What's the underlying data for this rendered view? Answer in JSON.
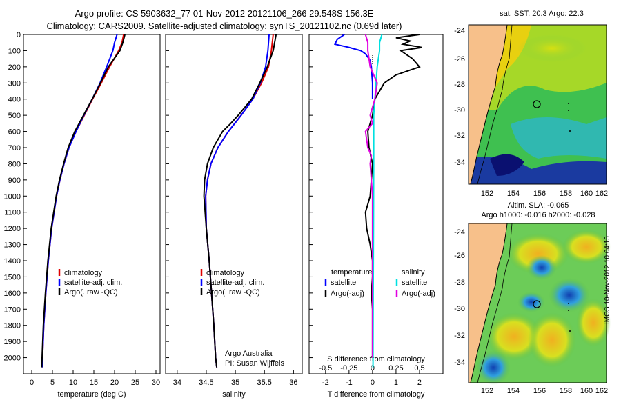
{
  "header": {
    "line1": "Argo profile: CS 5903632_77 01-Nov-2012 20121106_266 29.548S 156.3E",
    "line2": "Climatology: CARS2009. Satellite-adjusted climatology: synTS_20121102.nc (0.69d later)"
  },
  "colors": {
    "climatology": "#e00000",
    "satellite": "#0000ff",
    "argo": "#000000",
    "sal_satellite": "#00e0e0",
    "sal_argo": "#e000e0"
  },
  "chart_data": [
    {
      "type": "line",
      "name": "temperature",
      "xlabel": "temperature (deg C)",
      "ylabel": "",
      "xlim": [
        -2,
        31
      ],
      "ylim": [
        2100,
        0
      ],
      "xticks": [
        0,
        5,
        10,
        15,
        20,
        25,
        30
      ],
      "yticks": [
        0,
        100,
        200,
        300,
        400,
        500,
        600,
        700,
        800,
        900,
        1000,
        1100,
        1200,
        1300,
        1400,
        1500,
        1600,
        1700,
        1800,
        1900,
        2000
      ],
      "series": [
        {
          "name": "climatology",
          "depth": [
            0,
            50,
            100,
            200,
            300,
            400,
            500,
            600,
            700,
            800,
            900,
            1000,
            1200,
            1400,
            1600,
            1800,
            2000,
            2060
          ],
          "values": [
            22.2,
            21.8,
            21.0,
            18.8,
            16.8,
            14.7,
            12.7,
            10.7,
            9.0,
            7.8,
            6.8,
            6.0,
            4.8,
            4.0,
            3.4,
            2.9,
            2.6,
            2.5
          ]
        },
        {
          "name": "satellite-adj. clim.",
          "depth": [
            0,
            50,
            100,
            200,
            300,
            400,
            500,
            600,
            700,
            800,
            900,
            1000,
            1200,
            1400,
            1600,
            1800,
            2000,
            2060
          ],
          "values": [
            20.6,
            20.0,
            19.6,
            18.1,
            16.5,
            14.6,
            12.6,
            10.7,
            9.0,
            7.8,
            6.8,
            6.0,
            4.8,
            4.0,
            3.4,
            2.9,
            2.6,
            2.5
          ]
        },
        {
          "name": "Argo(..raw -QC)",
          "depth": [
            0,
            50,
            100,
            200,
            300,
            400,
            500,
            600,
            700,
            800,
            900,
            1000,
            1200,
            1400,
            1600,
            1800,
            2000,
            2060
          ],
          "values": [
            22.5,
            22.0,
            21.3,
            18.5,
            16.6,
            14.6,
            12.5,
            10.4,
            8.8,
            7.7,
            6.7,
            5.9,
            4.7,
            3.9,
            3.3,
            2.8,
            2.5,
            2.4
          ]
        }
      ],
      "legend": [
        "climatology",
        "satellite-adj. clim.",
        "Argo(..raw -QC)"
      ]
    },
    {
      "type": "line",
      "name": "salinity",
      "xlabel": "salinity",
      "ylabel": "",
      "xlim": [
        33.8,
        36.15
      ],
      "ylim": [
        2100,
        0
      ],
      "xticks": [
        34,
        34.5,
        35,
        35.5,
        36
      ],
      "series": [
        {
          "name": "climatology",
          "depth": [
            0,
            100,
            200,
            300,
            400,
            500,
            600,
            700,
            800,
            900,
            1000,
            1200,
            1400,
            1600,
            1800,
            2000,
            2060
          ],
          "values": [
            35.65,
            35.62,
            35.57,
            35.45,
            35.3,
            35.1,
            34.88,
            34.7,
            34.58,
            34.52,
            34.49,
            34.5,
            34.55,
            34.59,
            34.63,
            34.66,
            34.68
          ]
        },
        {
          "name": "satellite-adj. clim.",
          "depth": [
            0,
            100,
            200,
            300,
            400,
            500,
            600,
            700,
            800,
            900,
            1000,
            1200,
            1400,
            1600,
            1800,
            2000,
            2060
          ],
          "values": [
            35.58,
            35.56,
            35.52,
            35.43,
            35.3,
            35.1,
            34.88,
            34.7,
            34.58,
            34.52,
            34.49,
            34.5,
            34.55,
            34.59,
            34.63,
            34.66,
            34.68
          ]
        },
        {
          "name": "Argo(..raw -QC)",
          "depth": [
            0,
            100,
            200,
            300,
            400,
            500,
            550,
            600,
            700,
            800,
            900,
            1000,
            1200,
            1400,
            1600,
            1800,
            2000,
            2060
          ],
          "values": [
            35.7,
            35.65,
            35.55,
            35.42,
            35.28,
            35.05,
            34.92,
            34.78,
            34.62,
            34.52,
            34.47,
            34.46,
            34.5,
            34.55,
            34.59,
            34.63,
            34.66,
            34.68
          ]
        }
      ],
      "legend": [
        "climatology",
        "satellite-adj. clim.",
        "Argo(..raw -QC)"
      ],
      "annotation": [
        "Argo Australia",
        "PI: Susan Wijffels"
      ]
    },
    {
      "type": "line",
      "name": "differences",
      "xlabel": "T difference from climatology",
      "xlabel2": "S difference from climatology",
      "xlim": [
        -2.7,
        3.0
      ],
      "ylim": [
        2100,
        0
      ],
      "xticks": [
        -2,
        -1,
        0,
        1,
        2
      ],
      "xticks2_values": [
        -2,
        -1,
        0,
        1,
        2
      ],
      "xticks2_labels": [
        "-0.5",
        "-0.25",
        "0",
        "0.25",
        "0.5"
      ],
      "series": [
        {
          "name": "temperature satellite",
          "depth": [
            0,
            30,
            60,
            80,
            100,
            120,
            140,
            160,
            200,
            300,
            400
          ],
          "values": [
            -1.2,
            -1.5,
            -1.6,
            -1.0,
            -0.5,
            -0.3,
            -0.2,
            -0.1,
            -0.05,
            0,
            0
          ]
        },
        {
          "name": "temperature Argo(-adj)",
          "depth": [
            0,
            20,
            40,
            60,
            80,
            100,
            150,
            200,
            250,
            300,
            400,
            500,
            600,
            700,
            800,
            900,
            1000,
            1100,
            1200,
            1300,
            1400,
            1500,
            1600,
            1700,
            1800,
            1900,
            2000
          ],
          "values": [
            2.0,
            1.0,
            1.6,
            1.3,
            2.1,
            1.2,
            1.7,
            2.0,
            1.0,
            0.5,
            0.1,
            0,
            -0.2,
            -0.15,
            0,
            -0.05,
            -0.1,
            -0.3,
            -0.25,
            -0.1,
            0,
            0,
            -0.05,
            0,
            0,
            0,
            0
          ]
        },
        {
          "name": "salinity satellite",
          "depth": [
            0,
            50,
            100,
            200,
            300,
            400,
            500,
            800,
            1200,
            1600,
            2060
          ],
          "values": [
            0.4,
            0.3,
            0.3,
            0.2,
            0.15,
            0.1,
            0.05,
            0.05,
            0.04,
            0.03,
            0.02
          ]
        },
        {
          "name": "salinity Argo(-adj)",
          "depth": [
            0,
            50,
            100,
            200,
            300,
            400,
            500,
            550,
            600,
            700,
            750,
            800,
            900,
            1000,
            1100,
            1200,
            1400,
            1600,
            1800,
            2000
          ],
          "values": [
            -0.3,
            -0.2,
            -0.2,
            -0.1,
            0.2,
            0.1,
            -0.1,
            0,
            -0.3,
            -0.2,
            -0.05,
            -0.1,
            -0.05,
            0,
            0,
            0,
            0,
            0,
            0,
            0
          ]
        }
      ],
      "legend_headers": [
        "temperature",
        "salinity"
      ],
      "legend": [
        "satellite",
        "Argo(-adj)",
        "satellite",
        "Argo(-adj)"
      ]
    }
  ],
  "map_top": {
    "title": "sat. SST: 20.3 Argo: 22.3",
    "yticks": [
      "-24",
      "-26",
      "-28",
      "-30",
      "-32",
      "-34"
    ],
    "xticks": [
      "152",
      "154",
      "156",
      "158",
      "160",
      "162"
    ]
  },
  "map_bottom": {
    "title1": "Altim. SLA: -0.065",
    "title2": "Argo h1000: -0.016 h2000: -0.028",
    "yticks": [
      "-24",
      "-26",
      "-28",
      "-30",
      "-32",
      "-34"
    ],
    "xticks": [
      "152",
      "154",
      "156",
      "158",
      "160",
      "162"
    ]
  },
  "watermark": "IMOS 10-Nov-2012 10:04:15"
}
